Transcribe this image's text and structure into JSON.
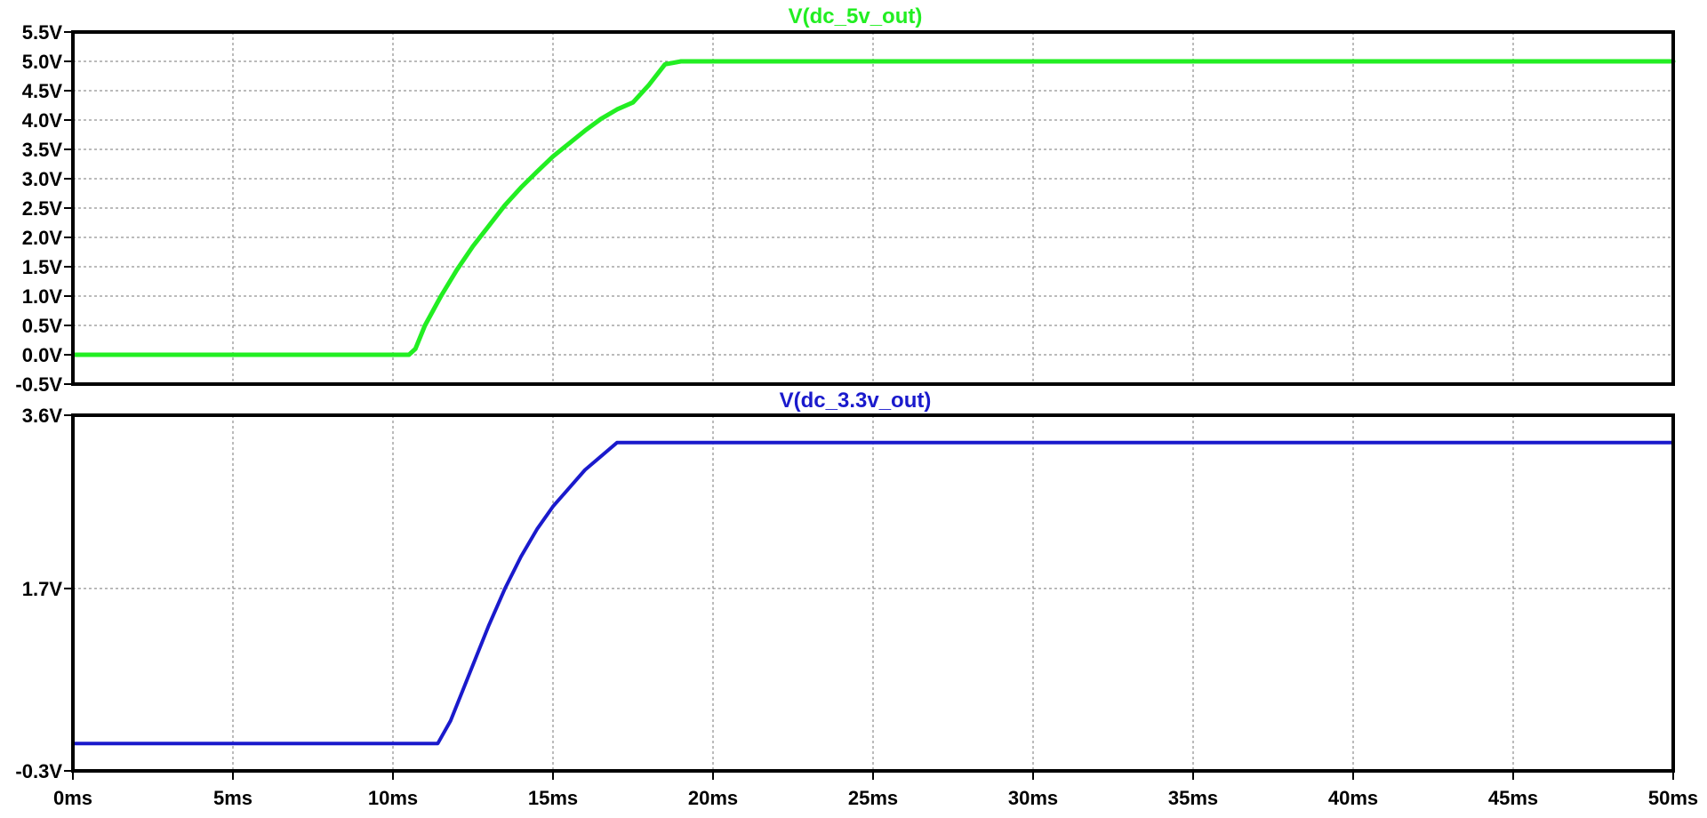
{
  "chart_data": [
    {
      "type": "line",
      "title": "V(dc_5v_out)",
      "color": "#22ee22",
      "x_unit": "ms",
      "y_unit": "V",
      "xlim": [
        0,
        50
      ],
      "ylim": [
        -0.5,
        5.5
      ],
      "y_ticks": [
        "5.5V",
        "5.0V",
        "4.5V",
        "4.0V",
        "3.5V",
        "3.0V",
        "2.5V",
        "2.0V",
        "1.5V",
        "1.0V",
        "0.5V",
        "0.0V",
        "-0.5V"
      ],
      "y_tick_values": [
        5.5,
        5.0,
        4.5,
        4.0,
        3.5,
        3.0,
        2.5,
        2.0,
        1.5,
        1.0,
        0.5,
        0.0,
        -0.5
      ],
      "grid": true,
      "series": [
        {
          "name": "V(dc_5v_out)",
          "x": [
            0,
            10.0,
            10.5,
            10.7,
            11.0,
            11.5,
            12.0,
            12.5,
            13.0,
            13.5,
            14.0,
            14.5,
            15.0,
            15.5,
            16.0,
            16.5,
            17.0,
            17.5,
            18.0,
            18.5,
            19.0,
            20.0,
            25.0,
            30.0,
            35.0,
            40.0,
            45.0,
            50.0
          ],
          "y": [
            0,
            0,
            0.0,
            0.1,
            0.5,
            1.0,
            1.45,
            1.85,
            2.2,
            2.55,
            2.85,
            3.12,
            3.38,
            3.6,
            3.82,
            4.02,
            4.18,
            4.3,
            4.6,
            4.95,
            5.0,
            5.0,
            5.0,
            5.0,
            5.0,
            5.0,
            5.0,
            5.0
          ]
        }
      ]
    },
    {
      "type": "line",
      "title": "V(dc_3.3v_out)",
      "color": "#1a1acc",
      "x_unit": "ms",
      "y_unit": "V",
      "xlim": [
        0,
        50
      ],
      "ylim": [
        -0.3,
        3.6
      ],
      "y_ticks": [
        "3.6V",
        "1.7V",
        "-0.3V"
      ],
      "y_tick_values": [
        3.6,
        1.7,
        -0.3
      ],
      "grid_y_values": [
        3.6,
        1.7,
        -0.3
      ],
      "grid": true,
      "series": [
        {
          "name": "V(dc_3.3v_out)",
          "x": [
            0,
            11.0,
            11.4,
            11.8,
            12.2,
            12.6,
            13.0,
            13.5,
            14.0,
            14.5,
            15.0,
            15.5,
            16.0,
            16.5,
            17.0,
            17.2,
            18.0,
            19.0,
            20.0,
            25.0,
            30.0,
            35.0,
            40.0,
            45.0,
            50.0
          ],
          "y": [
            0.0,
            0.0,
            0.0,
            0.25,
            0.6,
            0.95,
            1.3,
            1.7,
            2.05,
            2.35,
            2.6,
            2.8,
            3.0,
            3.15,
            3.3,
            3.3,
            3.3,
            3.3,
            3.3,
            3.3,
            3.3,
            3.3,
            3.3,
            3.3,
            3.3
          ]
        }
      ]
    }
  ],
  "x_ticks": [
    "0ms",
    "5ms",
    "10ms",
    "15ms",
    "20ms",
    "25ms",
    "30ms",
    "35ms",
    "40ms",
    "45ms",
    "50ms"
  ],
  "x_tick_values": [
    0,
    5,
    10,
    15,
    20,
    25,
    30,
    35,
    40,
    45,
    50
  ]
}
